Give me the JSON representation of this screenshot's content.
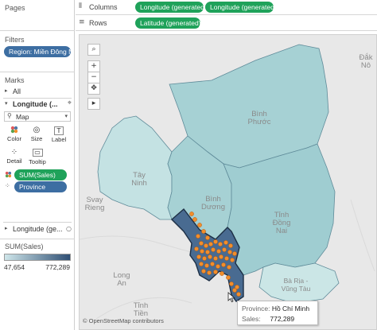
{
  "left_panel": {
    "pages_title": "Pages",
    "filters_title": "Filters",
    "filter_pill": "Region: Miền Đông N...",
    "marks_title": "Marks",
    "all_label": "All",
    "longitude_card_1": "Longitude (...",
    "mark_type": "Map",
    "buttons": {
      "color": "Color",
      "size": "Size",
      "label": "Label",
      "detail": "Detail",
      "tooltip": "Tooltip"
    },
    "sales_pill": "SUM(Sales)",
    "province_pill": "Province",
    "longitude_card_2": "Longitude (ge...",
    "legend_title": "SUM(Sales)",
    "legend_min": "47,654",
    "legend_max": "772,289",
    "colors": {
      "legend_start": "#cfe6ea",
      "legend_end": "#2f4f74"
    }
  },
  "shelves": {
    "columns_label": "Columns",
    "columns_pills": [
      "Longitude (generated)",
      "Longitude (generated)"
    ],
    "rows_label": "Rows",
    "rows_pills": [
      "Latitude (generated)"
    ]
  },
  "map": {
    "labels": {
      "binh_phuoc": [
        "Bình",
        "Phước"
      ],
      "tay_ninh": [
        "Tây",
        "Ninh"
      ],
      "binh_duong": [
        "Bình",
        "Dương"
      ],
      "dong_nai": [
        "Tỉnh",
        "Đồng",
        "Nai"
      ],
      "svay_rieng": [
        "Svay",
        "Rieng"
      ],
      "dak": [
        "Đắk",
        "Nô"
      ],
      "long_an": [
        "Long",
        "An"
      ],
      "tinh_tien": [
        "Tỉnh",
        "Tiền"
      ],
      "ba_ria": [
        "Bà Rịa -",
        "Vũng Tàu"
      ]
    },
    "attribution": "© OpenStreetMap contributors",
    "colors": {
      "hcm_fill": "#496b91",
      "province_fill": "#a9d3d6",
      "point": "#f28e2b"
    }
  },
  "tooltip": {
    "province_label": "Province:",
    "province_value": "Hồ Chí Minh",
    "sales_label": "Sales:",
    "sales_value": "772,289"
  }
}
